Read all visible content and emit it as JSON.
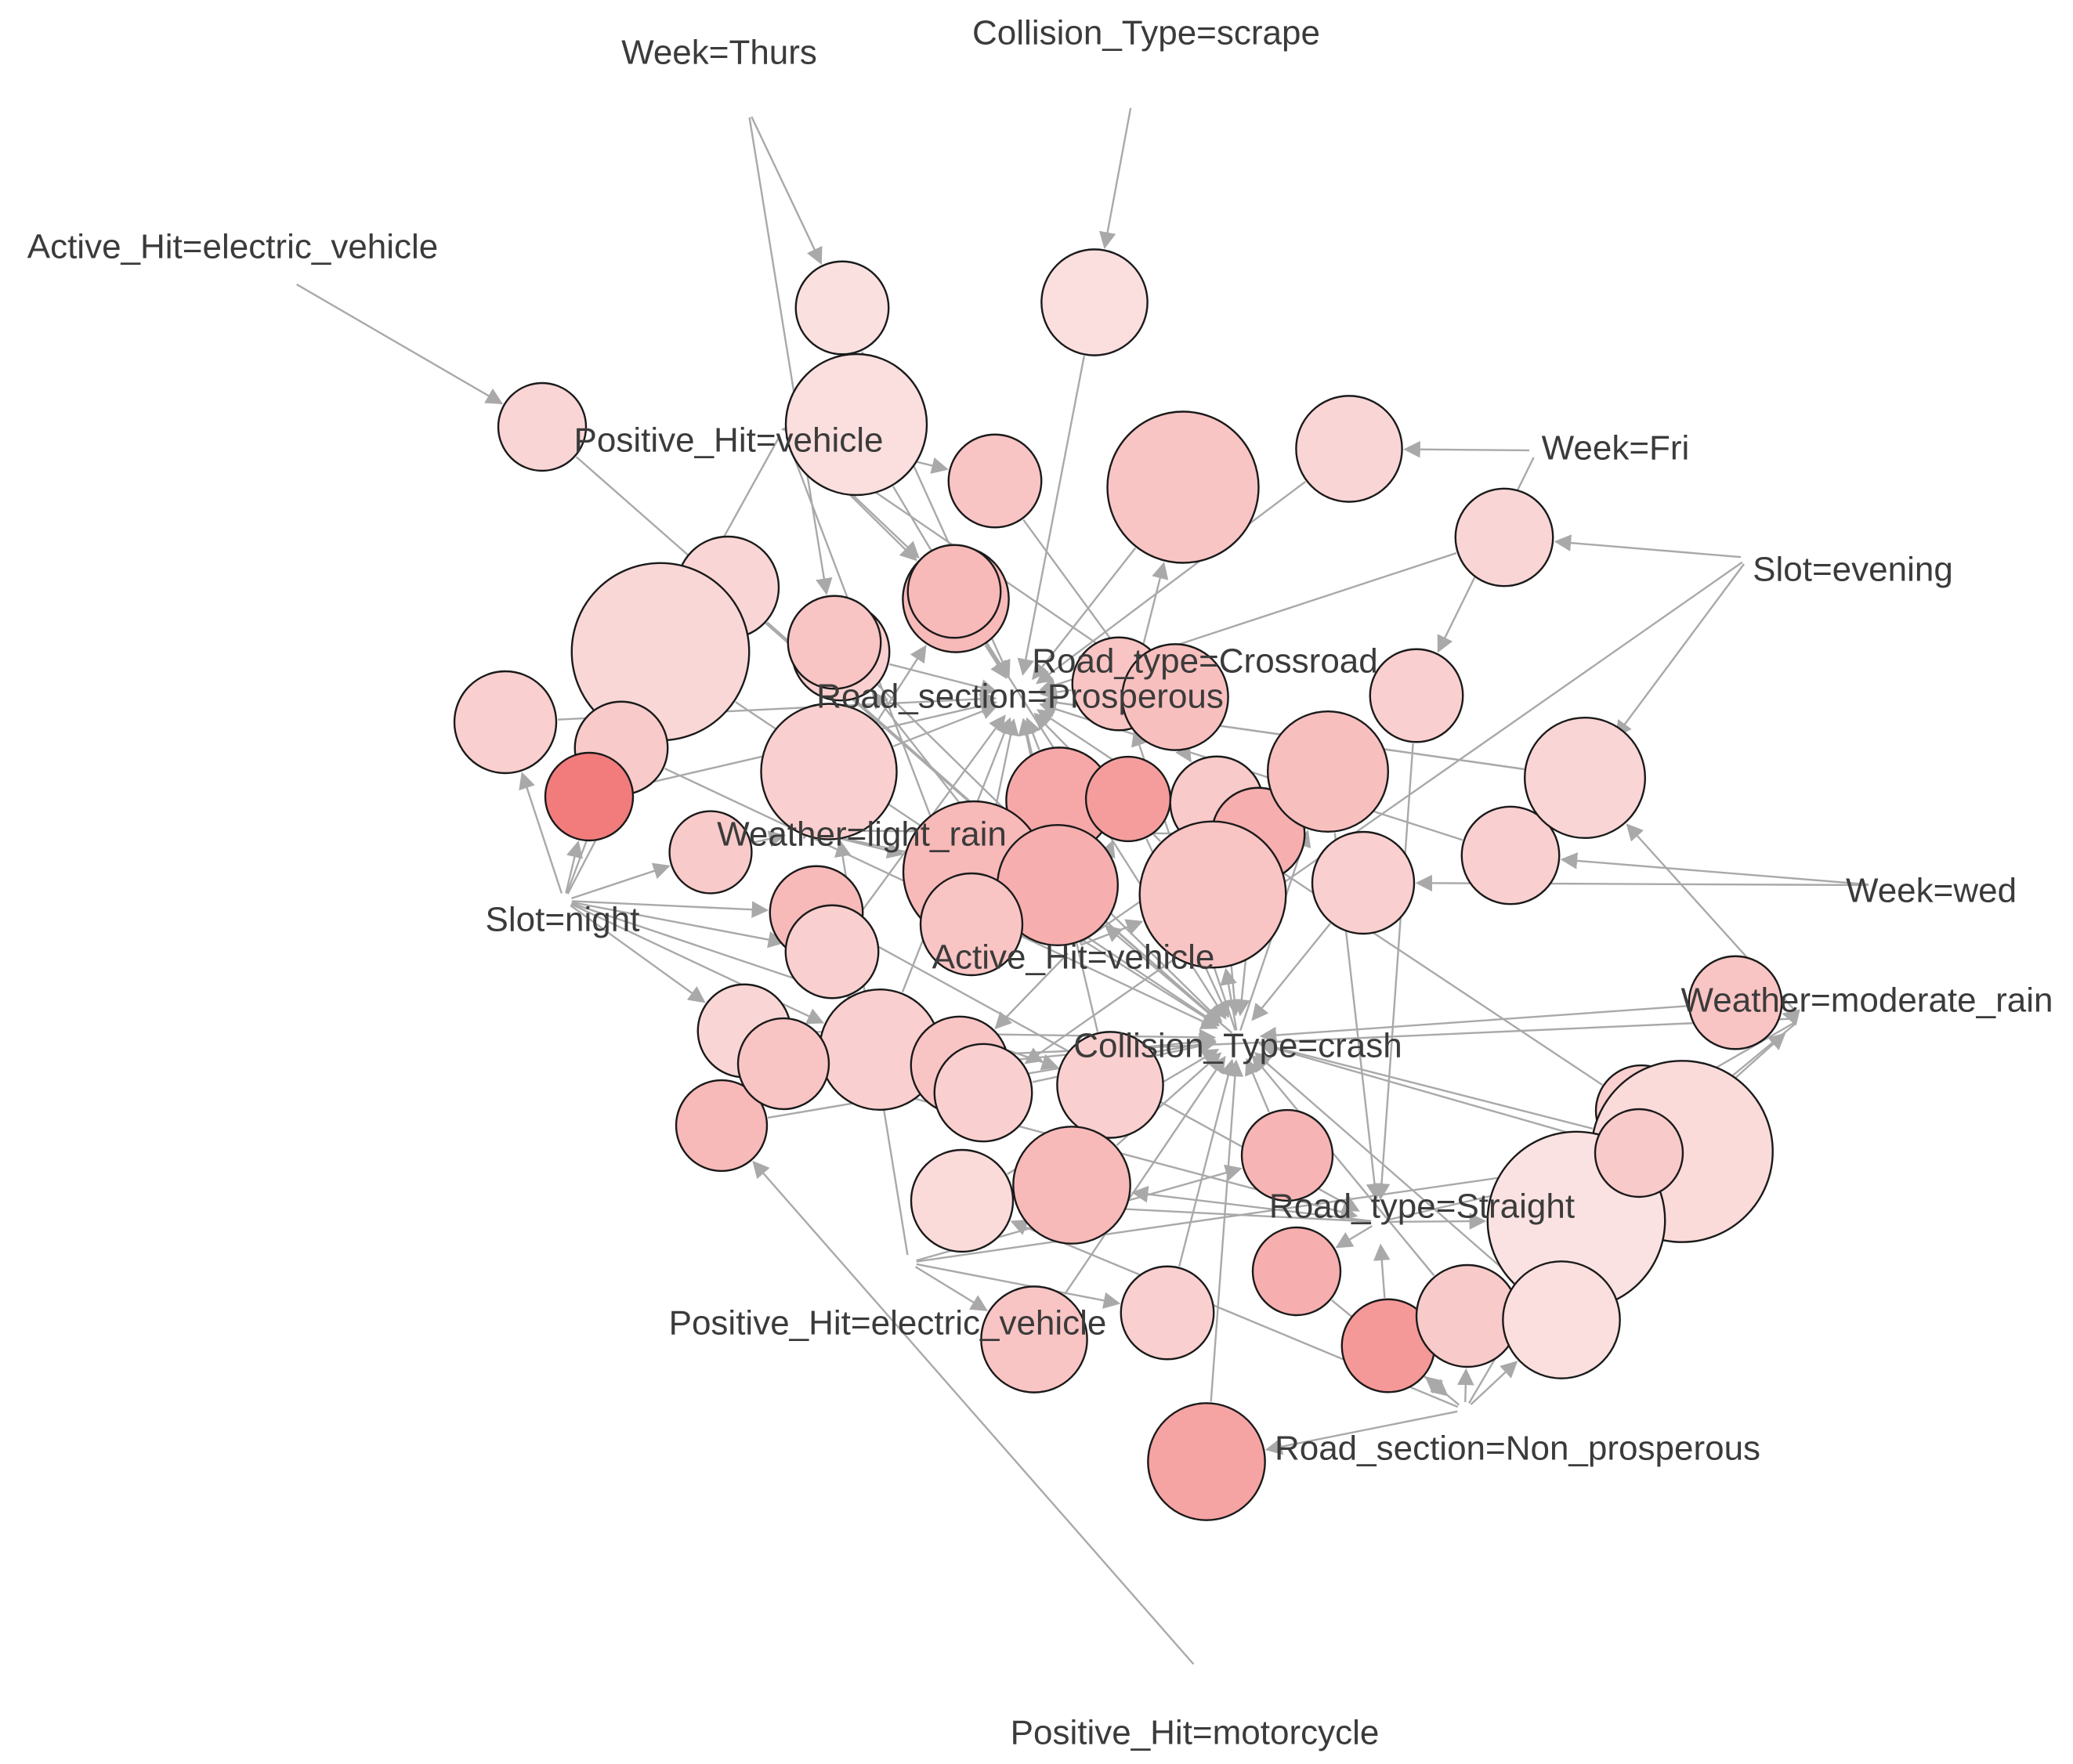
{
  "diagram": {
    "type": "association-rules-graph",
    "colors": {
      "edge": "#a9a9a9",
      "node_stroke": "#1a1a1a",
      "node_fill_light": "#fcebeb",
      "node_fill_dark": "#f27c7c",
      "label": "#3b3b3b"
    },
    "items": [
      {
        "id": "week_thurs",
        "label": "Week=Thurs"
      },
      {
        "id": "collision_scrape",
        "label": "Collision_Type=scrape"
      },
      {
        "id": "active_ev",
        "label": "Active_Hit=electric_vehicle"
      },
      {
        "id": "positive_vehicle",
        "label": "Positive_Hit=vehicle"
      },
      {
        "id": "week_fri",
        "label": "Week=Fri"
      },
      {
        "id": "slot_evening",
        "label": "Slot=evening"
      },
      {
        "id": "road_crossroad",
        "label": "Road_type=Crossroad"
      },
      {
        "id": "section_prosperous",
        "label": "Road_section=Prosperous"
      },
      {
        "id": "weather_light_rain",
        "label": "Weather=light_rain"
      },
      {
        "id": "week_wed",
        "label": "Week=wed"
      },
      {
        "id": "slot_night",
        "label": "Slot=night"
      },
      {
        "id": "active_vehicle",
        "label": "Active_Hit=vehicle"
      },
      {
        "id": "weather_moderate_rain",
        "label": "Weather=moderate_rain"
      },
      {
        "id": "collision_crash",
        "label": "Collision_Type=crash"
      },
      {
        "id": "road_straight",
        "label": "Road_type=Straight"
      },
      {
        "id": "positive_ev",
        "label": "Positive_Hit=electric_vehicle"
      },
      {
        "id": "section_non_prosperous",
        "label": "Road_section=Non_prosperous"
      },
      {
        "id": "positive_motorcycle",
        "label": "Positive_Hit=motorcycle"
      }
    ],
    "rules": [
      {
        "id": "r1",
        "support": 0.3,
        "lift": 0.1,
        "from": [
          "week_thurs"
        ],
        "to": "section_prosperous"
      },
      {
        "id": "r2",
        "support": 0.45,
        "lift": 0.12,
        "from": [
          "collision_scrape"
        ],
        "to": "section_prosperous"
      },
      {
        "id": "r3",
        "support": 0.25,
        "lift": 0.2,
        "from": [
          "active_ev"
        ],
        "to": "collision_crash"
      },
      {
        "id": "r4",
        "support": 1.0,
        "lift": 0.12,
        "from": [
          "positive_vehicle"
        ],
        "to": "section_prosperous"
      },
      {
        "id": "r5",
        "support": 0.3,
        "lift": 0.35,
        "from": [
          "positive_vehicle"
        ],
        "to": "road_crossroad"
      },
      {
        "id": "r6",
        "support": 1.2,
        "lift": 0.35,
        "from": [
          "road_crossroad"
        ],
        "to": "section_prosperous"
      },
      {
        "id": "r7",
        "support": 0.45,
        "lift": 0.2,
        "from": [
          "week_fri"
        ],
        "to": "section_prosperous"
      },
      {
        "id": "r8",
        "support": 0.35,
        "lift": 0.2,
        "from": [
          "slot_evening"
        ],
        "to": "section_prosperous"
      },
      {
        "id": "r9",
        "support": 0.45,
        "lift": 0.45,
        "from": [
          "weather_light_rain",
          "positive_vehicle"
        ],
        "to": "section_prosperous"
      },
      {
        "id": "r10",
        "support": 0.4,
        "lift": 0.2,
        "from": [
          "slot_night"
        ],
        "to": "collision_crash"
      },
      {
        "id": "r11",
        "support": 1.8,
        "lift": 0.18,
        "from": [
          "positive_vehicle"
        ],
        "to": "collision_crash"
      },
      {
        "id": "r12",
        "support": 0.35,
        "lift": 0.25,
        "from": [
          "active_vehicle"
        ],
        "to": "section_prosperous"
      },
      {
        "id": "r13",
        "support": 0.3,
        "lift": 0.35,
        "from": [
          "road_crossroad",
          "collision_crash"
        ],
        "to": "section_prosperous"
      },
      {
        "id": "r14",
        "support": 0.3,
        "lift": 0.25,
        "from": [
          "week_fri"
        ],
        "to": "road_straight"
      },
      {
        "id": "r15",
        "support": 0.4,
        "lift": 0.25,
        "from": [
          "slot_night"
        ],
        "to": "section_prosperous"
      },
      {
        "id": "r16",
        "support": 0.3,
        "lift": 0.3,
        "from": [
          "slot_night"
        ],
        "to": "collision_crash"
      },
      {
        "id": "r17",
        "support": 0.25,
        "lift": 1.0,
        "from": [
          "slot_night"
        ],
        "to": "section_prosperous"
      },
      {
        "id": "r18",
        "support": 0.9,
        "lift": 0.25,
        "from": [
          "positive_ev",
          "weather_light_rain"
        ],
        "to": "section_prosperous"
      },
      {
        "id": "r19",
        "support": 0.2,
        "lift": 0.3,
        "from": [
          "slot_night"
        ],
        "to": "weather_light_rain"
      },
      {
        "id": "r20",
        "support": 0.45,
        "lift": 0.6,
        "from": [
          "active_vehicle"
        ],
        "to": "section_prosperous"
      },
      {
        "id": "r21",
        "support": 0.22,
        "lift": 0.7,
        "from": [
          "active_vehicle"
        ],
        "to": "collision_crash"
      },
      {
        "id": "r22",
        "support": 0.3,
        "lift": 0.3,
        "from": [
          "road_crossroad"
        ],
        "to": "collision_crash"
      },
      {
        "id": "r23",
        "support": 0.3,
        "lift": 0.55,
        "from": [
          "weather_light_rain"
        ],
        "to": "collision_crash"
      },
      {
        "id": "r24",
        "support": 1.0,
        "lift": 0.45,
        "from": [
          "weather_light_rain",
          "active_vehicle"
        ],
        "to": "collision_crash"
      },
      {
        "id": "r25",
        "support": 0.65,
        "lift": 0.55,
        "from": [
          "weather_light_rain",
          "collision_crash"
        ],
        "to": "section_prosperous"
      },
      {
        "id": "r26",
        "support": 0.4,
        "lift": 0.35,
        "from": [
          "positive_vehicle"
        ],
        "to": "section_prosperous"
      },
      {
        "id": "r27",
        "support": 1.1,
        "lift": 0.35,
        "from": [
          "active_vehicle",
          "collision_crash"
        ],
        "to": "section_prosperous"
      },
      {
        "id": "r28",
        "support": 0.35,
        "lift": 0.25,
        "from": [
          "week_wed"
        ],
        "to": "section_prosperous"
      },
      {
        "id": "r29",
        "support": 0.4,
        "lift": 0.25,
        "from": [
          "week_wed"
        ],
        "to": "collision_crash"
      },
      {
        "id": "r30",
        "support": 0.35,
        "lift": 0.25,
        "from": [
          "slot_evening"
        ],
        "to": "section_prosperous"
      },
      {
        "id": "r31",
        "support": 0.65,
        "lift": 0.4,
        "from": [
          "active_vehicle",
          "collision_crash"
        ],
        "to": "road_straight"
      },
      {
        "id": "r32",
        "support": 0.65,
        "lift": 0.2,
        "from": [
          "weather_moderate_rain"
        ],
        "to": "section_prosperous"
      },
      {
        "id": "r33",
        "support": 0.3,
        "lift": 0.45,
        "from": [
          "slot_night"
        ],
        "to": "road_straight"
      },
      {
        "id": "r34",
        "support": 0.3,
        "lift": 0.25,
        "from": [
          "slot_night"
        ],
        "to": "section_prosperous"
      },
      {
        "id": "r35",
        "support": 0.3,
        "lift": 0.2,
        "from": [
          "slot_night"
        ],
        "to": "collision_crash"
      },
      {
        "id": "r36",
        "support": 0.65,
        "lift": 0.25,
        "from": [
          "slot_night"
        ],
        "to": "section_prosperous"
      },
      {
        "id": "r37",
        "support": 0.35,
        "lift": 0.35,
        "from": [
          "active_vehicle"
        ],
        "to": "collision_crash"
      },
      {
        "id": "r38",
        "support": 0.45,
        "lift": 0.25,
        "from": [
          "slot_night"
        ],
        "to": "section_prosperous"
      },
      {
        "id": "r39",
        "support": 0.28,
        "lift": 0.25,
        "from": [
          "weather_moderate_rain"
        ],
        "to": "section_prosperous"
      },
      {
        "id": "r40",
        "support": 0.3,
        "lift": 0.35,
        "from": [
          "weather_moderate_rain"
        ],
        "to": "collision_crash"
      },
      {
        "id": "r41",
        "support": 1.9,
        "lift": 0.15,
        "from": [
          "road_straight",
          "positive_ev"
        ],
        "to": "collision_crash"
      },
      {
        "id": "r42",
        "support": 0.6,
        "lift": 0.45,
        "from": [
          "road_straight"
        ],
        "to": "collision_crash"
      },
      {
        "id": "r43",
        "support": 0.28,
        "lift": 0.5,
        "from": [
          "positive_ev"
        ],
        "to": "collision_crash"
      },
      {
        "id": "r44",
        "support": 0.25,
        "lift": 0.55,
        "from": [
          "road_straight"
        ],
        "to": "section_non_prosperous"
      },
      {
        "id": "r45",
        "support": 0.4,
        "lift": 0.15,
        "from": [
          "road_straight",
          "section_non_prosperous"
        ],
        "to": "collision_crash"
      },
      {
        "id": "r46",
        "support": 1.8,
        "lift": 0.08,
        "from": [
          "road_straight",
          "section_non_prosperous"
        ],
        "to": "weather_moderate_rain"
      },
      {
        "id": "r47",
        "support": 0.3,
        "lift": 0.25,
        "from": [
          "positive_ev"
        ],
        "to": "collision_crash"
      },
      {
        "id": "r48",
        "support": 0.45,
        "lift": 0.35,
        "from": [
          "positive_ev"
        ],
        "to": "collision_crash"
      },
      {
        "id": "r49",
        "support": 0.3,
        "lift": 0.75,
        "from": [
          "section_non_prosperous"
        ],
        "to": "road_straight"
      },
      {
        "id": "r50",
        "support": 0.4,
        "lift": 0.3,
        "from": [
          "section_non_prosperous"
        ],
        "to": "collision_crash"
      },
      {
        "id": "r51",
        "support": 0.6,
        "lift": 0.12,
        "from": [
          "section_non_prosperous"
        ],
        "to": "collision_crash"
      },
      {
        "id": "r52",
        "support": 0.6,
        "lift": 0.65,
        "from": [
          "section_non_prosperous"
        ],
        "to": "collision_crash"
      },
      {
        "id": "r53",
        "support": 0.28,
        "lift": 0.45,
        "from": [
          "positive_motorcycle"
        ],
        "to": "collision_crash"
      },
      {
        "id": "r54",
        "support": 0.25,
        "lift": 0.3,
        "from": [
          "weather_moderate_rain"
        ],
        "to": "collision_crash"
      },
      {
        "id": "r55",
        "support": 0.28,
        "lift": 0.35,
        "from": [
          "weather_moderate_rain"
        ],
        "to": "road_straight"
      },
      {
        "id": "r56",
        "support": 0.35,
        "lift": 0.25,
        "from": [
          "slot_evening"
        ],
        "to": "collision_crash"
      },
      {
        "id": "r57",
        "support": 0.3,
        "lift": 0.45,
        "from": [
          "positive_vehicle"
        ],
        "to": "collision_crash"
      },
      {
        "id": "r58",
        "support": 0.3,
        "lift": 0.35,
        "from": [
          "week_thurs"
        ],
        "to": "collision_crash"
      },
      {
        "id": "r59",
        "support": 0.45,
        "lift": 0.4,
        "from": [
          "positive_vehicle"
        ],
        "to": "road_crossroad"
      }
    ]
  }
}
